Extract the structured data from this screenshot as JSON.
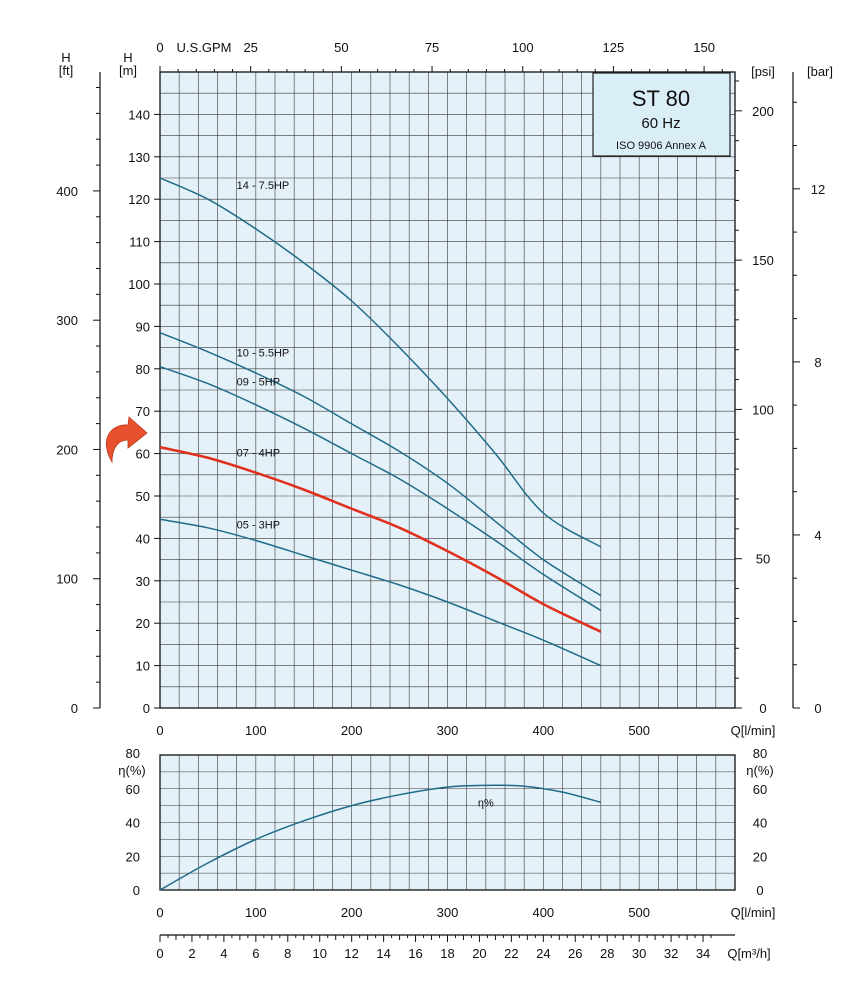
{
  "colors": {
    "plot_background": "#e4f1f9",
    "grid": "#3a3a3a",
    "curve": "#1f6b88",
    "highlight_curve": "#e0301e",
    "arrow": "#e8502e",
    "legend_box": "#daeef8"
  },
  "legend_box": {
    "model": "ST 80",
    "frequency": "60 Hz",
    "standard": "ISO 9906 Annex A"
  },
  "marker": {
    "icon": "curved-arrow-icon",
    "points_to_series": "07 - 4HP"
  },
  "chart_data": [
    {
      "type": "line",
      "title": "",
      "xlabel": "Q[l/min]",
      "ylabel": "H [m]",
      "xlim": [
        0,
        600
      ],
      "ylim": [
        0,
        150
      ],
      "x_ticks": [
        "0",
        "100",
        "200",
        "300",
        "400",
        "500"
      ],
      "y_ticks": [
        "0",
        "10",
        "20",
        "30",
        "40",
        "50",
        "60",
        "70",
        "80",
        "90",
        "100",
        "110",
        "120",
        "130",
        "140"
      ],
      "grid": true,
      "secondary_axes": [
        {
          "label_lines": [
            "H",
            "[ft]"
          ],
          "position": "left-outer",
          "range": [
            0,
            492
          ],
          "ticks": [
            "0",
            "100",
            "200",
            "300",
            "400"
          ]
        },
        {
          "label": "U.S.GPM",
          "position": "top",
          "range": [
            0,
            158.5
          ],
          "ticks": [
            "0",
            "25",
            "50",
            "75",
            "100",
            "125",
            "150"
          ]
        },
        {
          "label": "[psi]",
          "position": "right",
          "range": [
            0,
            213
          ],
          "ticks": [
            "0",
            "50",
            "100",
            "150",
            "200"
          ]
        },
        {
          "label": "[bar]",
          "position": "right-outer",
          "range": [
            0,
            14.7
          ],
          "ticks": [
            "0",
            "4",
            "8",
            "12"
          ]
        }
      ],
      "series": [
        {
          "name": "14 - 7.5HP",
          "highlight": false,
          "x": [
            0,
            50,
            100,
            150,
            200,
            250,
            300,
            350,
            400,
            460
          ],
          "y": [
            125,
            120,
            113,
            105,
            96,
            85,
            73,
            60,
            46,
            38
          ]
        },
        {
          "name": "10 - 5.5HP",
          "highlight": false,
          "x": [
            0,
            50,
            100,
            150,
            200,
            250,
            300,
            350,
            400,
            460
          ],
          "y": [
            88.5,
            84,
            79,
            73.5,
            67,
            60.5,
            53,
            44,
            35,
            26.5
          ]
        },
        {
          "name": "09 - 5HP",
          "highlight": false,
          "x": [
            0,
            50,
            100,
            150,
            200,
            250,
            300,
            350,
            400,
            460
          ],
          "y": [
            80.5,
            76.5,
            71.5,
            66,
            60,
            54,
            47,
            39.5,
            31.5,
            23
          ]
        },
        {
          "name": "07 - 4HP",
          "highlight": true,
          "x": [
            0,
            50,
            100,
            150,
            200,
            250,
            300,
            350,
            400,
            460
          ],
          "y": [
            61.5,
            59,
            55.5,
            51.5,
            47,
            42.5,
            37,
            31,
            24.5,
            18
          ]
        },
        {
          "name": "05 - 3HP",
          "highlight": false,
          "x": [
            0,
            50,
            100,
            150,
            200,
            250,
            300,
            350,
            400,
            460
          ],
          "y": [
            44.5,
            42.5,
            39.5,
            36,
            32.5,
            29,
            25,
            20.5,
            16,
            10
          ]
        }
      ]
    },
    {
      "type": "line",
      "title": "",
      "xlabel": "Q[l/min]",
      "ylabel": "η(%)",
      "ylabel_right": "η(%)",
      "xlim": [
        0,
        600
      ],
      "ylim": [
        0,
        80
      ],
      "x_ticks": [
        "0",
        "100",
        "200",
        "300",
        "400",
        "500"
      ],
      "y_ticks": [
        "0",
        "20",
        "40",
        "60",
        "80"
      ],
      "grid": true,
      "series": [
        {
          "name": "η%",
          "x": [
            0,
            50,
            100,
            150,
            200,
            250,
            300,
            340,
            380,
            420,
            460
          ],
          "y": [
            0,
            16,
            30,
            41,
            50,
            56.5,
            61,
            62,
            61.5,
            58,
            52
          ]
        }
      ]
    },
    {
      "type": "axis",
      "xlabel": "Q[m³/h]",
      "xlim": [
        0,
        36
      ],
      "x_ticks": [
        "0",
        "2",
        "4",
        "6",
        "8",
        "10",
        "12",
        "14",
        "16",
        "18",
        "20",
        "22",
        "24",
        "26",
        "28",
        "30",
        "32",
        "34"
      ]
    }
  ]
}
